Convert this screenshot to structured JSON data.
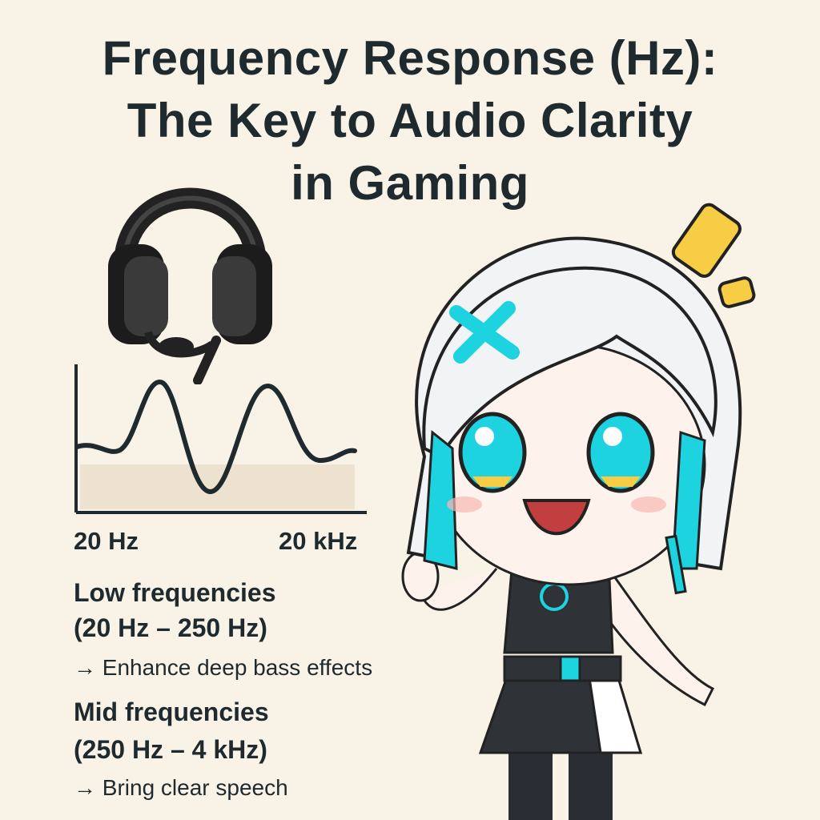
{
  "title": {
    "line1": "Frequency Response (Hz):",
    "line2": "The Key to Audio Clarity",
    "line3": "in Gaming"
  },
  "chart": {
    "x_min_label": "20 Hz",
    "x_max_label": "20 kHz",
    "line_color": "#1e2a2e",
    "band_color": "#ede2cf"
  },
  "sections": [
    {
      "heading": "Low frequencies",
      "range": "(20 Hz – 250 Hz)",
      "description": "→ Enhance deep bass effects"
    },
    {
      "heading": "Mid frequencies",
      "range": "(250 Hz – 4 kHz)",
      "description": "→ Bring clear speech"
    }
  ],
  "colors": {
    "background": "#f9f2e7",
    "text": "#1e2a2e",
    "accent_cyan": "#1ed3e0",
    "accent_yellow": "#f7cd45"
  },
  "illustrations": {
    "headphones": "gaming-headset-with-mic",
    "character": "anime-girl-white-hair-cyan-streaks-pointing"
  }
}
